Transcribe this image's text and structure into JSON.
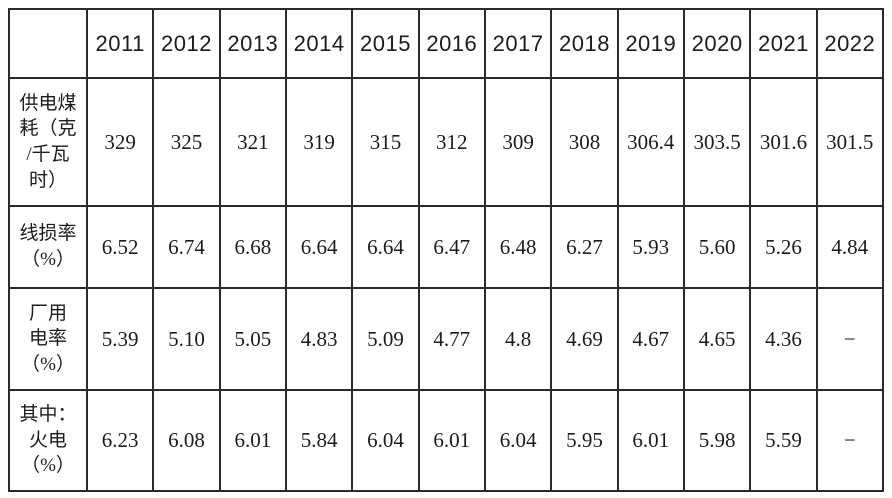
{
  "table": {
    "corner_label": "",
    "years": [
      "2011",
      "2012",
      "2013",
      "2014",
      "2015",
      "2016",
      "2017",
      "2018",
      "2019",
      "2020",
      "2021",
      "2022"
    ],
    "rows": [
      {
        "label": "供电煤\n耗（克\n/千瓦\n时）",
        "values": [
          "329",
          "325",
          "321",
          "319",
          "315",
          "312",
          "309",
          "308",
          "306.4",
          "303.5",
          "301.6",
          "301.5"
        ]
      },
      {
        "label": "线损率\n（%）",
        "values": [
          "6.52",
          "6.74",
          "6.68",
          "6.64",
          "6.64",
          "6.47",
          "6.48",
          "6.27",
          "5.93",
          "5.60",
          "5.26",
          "4.84"
        ]
      },
      {
        "label": "厂用\n电率\n（%）",
        "values": [
          "5.39",
          "5.10",
          "5.05",
          "4.83",
          "5.09",
          "4.77",
          "4.8",
          "4.69",
          "4.67",
          "4.65",
          "4.36",
          "−"
        ]
      },
      {
        "label": "其中：\n火电\n（%）",
        "values": [
          "6.23",
          "6.08",
          "6.01",
          "5.84",
          "6.04",
          "6.01",
          "6.04",
          "5.95",
          "6.01",
          "5.98",
          "5.59",
          "−"
        ]
      }
    ]
  },
  "colors": {
    "border": "#2b2b2b",
    "text": "#1c1c1c",
    "background": "#ffffff"
  },
  "chart_data": {
    "type": "table",
    "title": "",
    "categories": [
      "2011",
      "2012",
      "2013",
      "2014",
      "2015",
      "2016",
      "2017",
      "2018",
      "2019",
      "2020",
      "2021",
      "2022"
    ],
    "series": [
      {
        "name": "供电煤耗（克/千瓦时）",
        "values": [
          329,
          325,
          321,
          319,
          315,
          312,
          309,
          308,
          306.4,
          303.5,
          301.6,
          301.5
        ]
      },
      {
        "name": "线损率（%）",
        "values": [
          6.52,
          6.74,
          6.68,
          6.64,
          6.64,
          6.47,
          6.48,
          6.27,
          5.93,
          5.6,
          5.26,
          4.84
        ]
      },
      {
        "name": "厂用电率（%）",
        "values": [
          5.39,
          5.1,
          5.05,
          4.83,
          5.09,
          4.77,
          4.8,
          4.69,
          4.67,
          4.65,
          4.36,
          null
        ]
      },
      {
        "name": "其中：火电（%）",
        "values": [
          6.23,
          6.08,
          6.01,
          5.84,
          6.04,
          6.01,
          6.04,
          5.95,
          6.01,
          5.98,
          5.59,
          null
        ]
      }
    ],
    "missing_value_symbol": "−",
    "layout": {
      "grid": true,
      "header_row": "years",
      "header_font": "sans",
      "body_font": "serif"
    }
  }
}
